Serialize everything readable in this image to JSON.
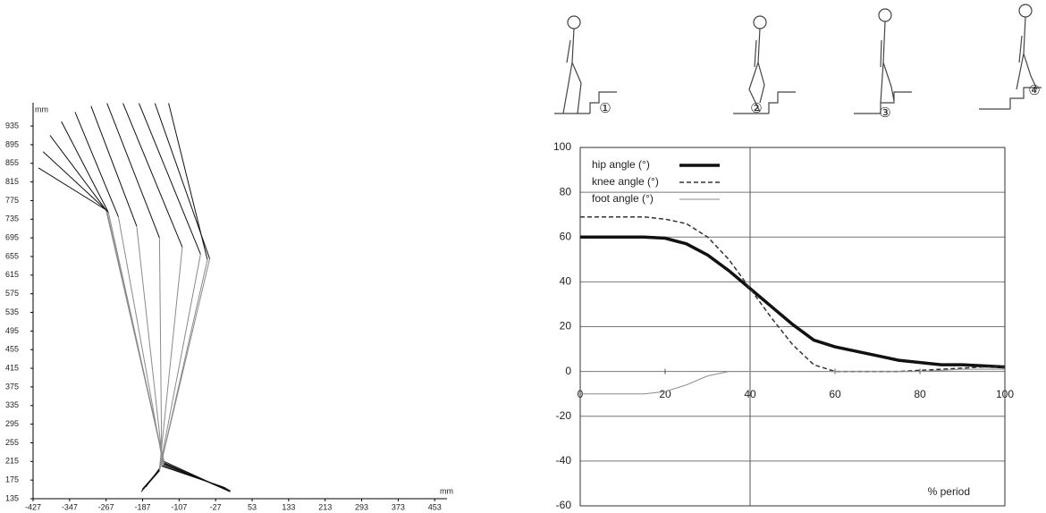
{
  "chart_data": [
    {
      "type": "stick",
      "xlabel": "mm",
      "ylabel": "mm",
      "xlim": [
        -427,
        480
      ],
      "ylim": [
        135,
        985
      ],
      "xticks": [
        -427,
        -347,
        -267,
        -187,
        -107,
        -27,
        53,
        133,
        213,
        293,
        373,
        453
      ],
      "yticks": [
        135,
        175,
        215,
        255,
        295,
        335,
        375,
        415,
        455,
        495,
        535,
        575,
        615,
        655,
        695,
        735,
        775,
        815,
        855,
        895,
        935
      ],
      "segment_colors": [
        "#111111",
        "#8a8a8a",
        "#111111"
      ],
      "series": [
        {
          "x": [
            -415,
            -267,
            -140,
            5
          ],
          "y": [
            845,
            755,
            215,
            150
          ]
        },
        {
          "x": [
            -405,
            -267,
            -140,
            5
          ],
          "y": [
            880,
            755,
            212,
            150
          ]
        },
        {
          "x": [
            -390,
            -265,
            -140,
            5
          ],
          "y": [
            915,
            752,
            210,
            152
          ]
        },
        {
          "x": [
            -365,
            -262,
            -140,
            5
          ],
          "y": [
            945,
            750,
            210,
            152
          ]
        },
        {
          "x": [
            -335,
            -240,
            -142,
            0
          ],
          "y": [
            965,
            740,
            208,
            155
          ]
        },
        {
          "x": [
            -300,
            -200,
            -142,
            -5
          ],
          "y": [
            978,
            720,
            205,
            158
          ]
        },
        {
          "x": [
            -265,
            -150,
            -145,
            -10
          ],
          "y": [
            984,
            695,
            205,
            160
          ]
        },
        {
          "x": [
            -230,
            -100,
            -150,
            -180
          ],
          "y": [
            984,
            675,
            200,
            160
          ]
        },
        {
          "x": [
            -195,
            -60,
            -150,
            -185
          ],
          "y": [
            984,
            660,
            198,
            158
          ]
        },
        {
          "x": [
            -160,
            -40,
            -150,
            -188
          ],
          "y": [
            984,
            650,
            196,
            155
          ]
        },
        {
          "x": [
            -130,
            -45,
            -150,
            -190
          ],
          "y": [
            984,
            648,
            195,
            150
          ]
        }
      ]
    },
    {
      "type": "line",
      "xlabel": "% period",
      "annotations": [
        "①",
        "②",
        "③",
        "④"
      ],
      "xlim": [
        0,
        100
      ],
      "ylim": [
        -60,
        100
      ],
      "xticks": [
        0,
        20,
        40,
        60,
        80,
        100
      ],
      "yticks": [
        -60,
        -40,
        -20,
        0,
        20,
        40,
        60,
        80,
        100
      ],
      "vline": 40,
      "grid": true,
      "x": [
        0,
        5,
        10,
        15,
        20,
        25,
        30,
        35,
        40,
        45,
        50,
        55,
        60,
        65,
        70,
        75,
        80,
        85,
        90,
        95,
        100
      ],
      "series": [
        {
          "name": "hip angle (°)",
          "color": "#111111",
          "style": "thick",
          "values": [
            60,
            60,
            60,
            60,
            59.5,
            57,
            52,
            45,
            37,
            29,
            21,
            14,
            11,
            9,
            7,
            5,
            4,
            3,
            3,
            2.5,
            2
          ]
        },
        {
          "name": "knee angle (°)",
          "color": "#333333",
          "style": "dashed",
          "values": [
            69,
            69,
            69,
            69,
            68,
            66,
            60,
            50,
            37,
            24,
            12,
            3,
            0,
            0,
            0,
            0,
            0.5,
            1,
            1.5,
            2,
            2
          ]
        },
        {
          "name": "foot angle (°)",
          "color": "#8a8a8a",
          "style": "thin",
          "values": [
            -10,
            -10,
            -10,
            -10,
            -9,
            -6,
            -2,
            0,
            0,
            0,
            0,
            0,
            0,
            0,
            0,
            0,
            0,
            0.5,
            1,
            1,
            1
          ]
        }
      ]
    }
  ]
}
